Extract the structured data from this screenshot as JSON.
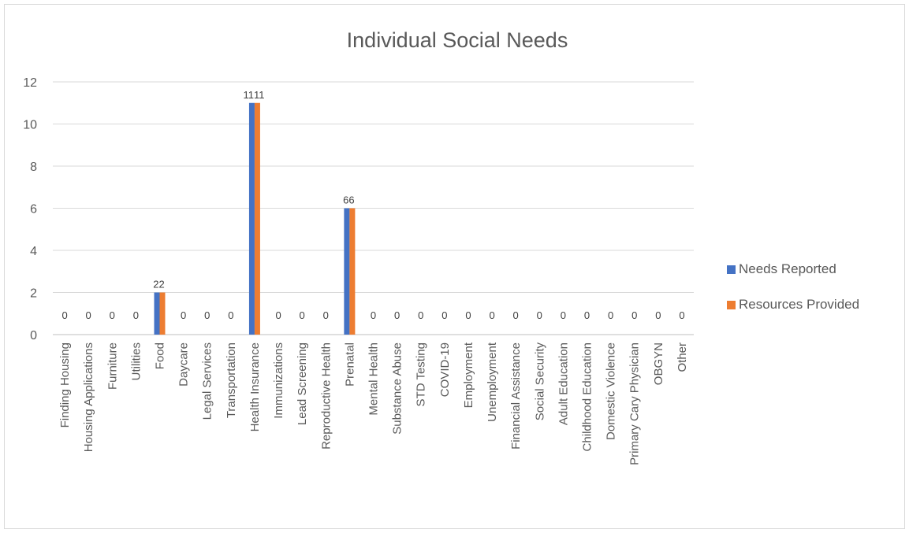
{
  "chart_data": {
    "type": "bar",
    "title": "Individual Social Needs",
    "xlabel": "",
    "ylabel": "",
    "ylim": [
      0,
      12
    ],
    "yticks": [
      0,
      2,
      4,
      6,
      8,
      10,
      12
    ],
    "grid": true,
    "legend_position": "right",
    "categories": [
      "Finding Housing",
      "Housing Applications",
      "Furniture",
      "Utilities",
      "Food",
      "Daycare",
      "Legal Services",
      "Transportation",
      "Health Insurance",
      "Immunizations",
      "Lead Screening",
      "Reproductive Health",
      "Prenatal",
      "Mental Health",
      "Substance Abuse",
      "STD Testing",
      "COVID-19",
      "Employment",
      "Unemployment",
      "Financial Assistance",
      "Social Security",
      "Adult Education",
      "Childhood Education",
      "Domestic Violence",
      "Primary Cary Physician",
      "OBGYN",
      "Other"
    ],
    "series": [
      {
        "name": "Needs Reported",
        "color": "#4472C4",
        "values": [
          0,
          0,
          0,
          0,
          2,
          0,
          0,
          0,
          11,
          0,
          0,
          0,
          6,
          0,
          0,
          0,
          0,
          0,
          0,
          0,
          0,
          0,
          0,
          0,
          0,
          0,
          0
        ]
      },
      {
        "name": "Resources Provided",
        "color": "#ED7D31",
        "values": [
          0,
          0,
          0,
          0,
          2,
          0,
          0,
          0,
          11,
          0,
          0,
          0,
          6,
          0,
          0,
          0,
          0,
          0,
          0,
          0,
          0,
          0,
          0,
          0,
          0,
          0,
          0
        ]
      }
    ]
  }
}
